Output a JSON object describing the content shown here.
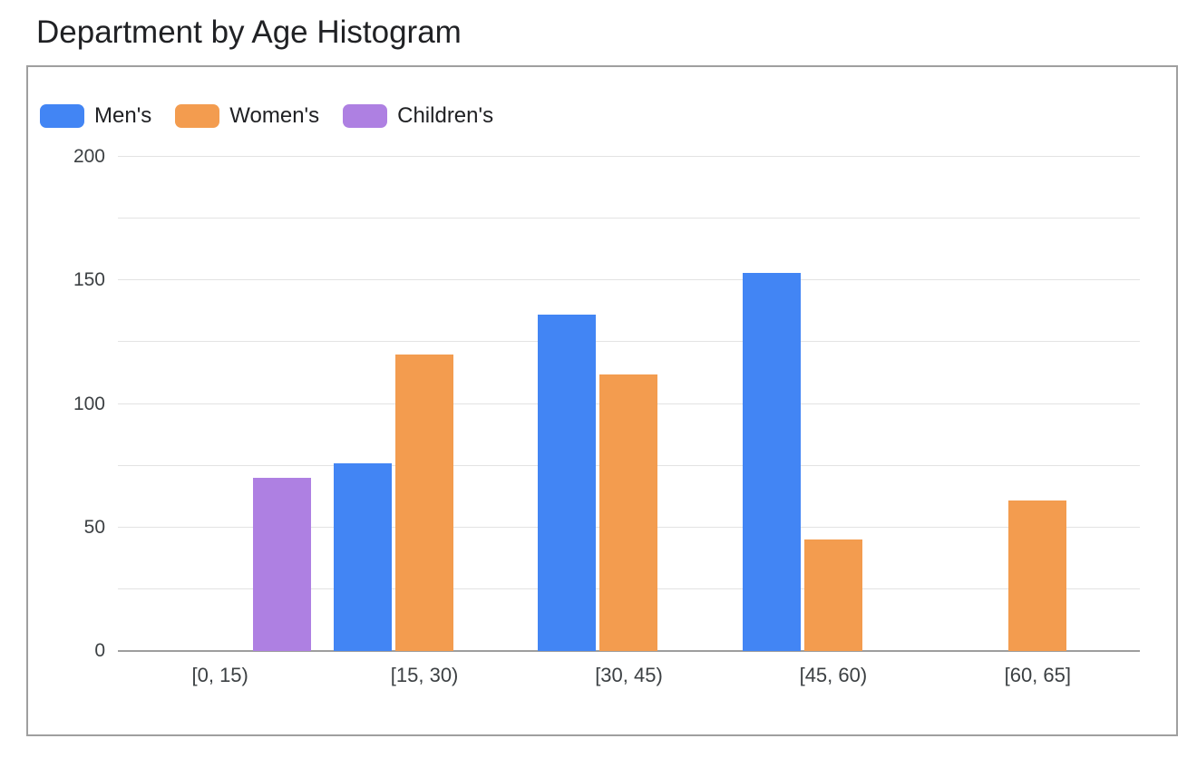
{
  "title": "Department by Age Histogram",
  "colors": {
    "mens_blue": "#4285F4",
    "womens_orange": "#F39C4F",
    "childrens_purple": "#AE80E2",
    "gridline": "#e3e3e3",
    "axis_line": "#9e9e9e",
    "card_border": "#9f9f9f",
    "title_text": "#202124",
    "axis_text": "#3c4043"
  },
  "legend": [
    {
      "label": "Men's",
      "color": "#4285F4"
    },
    {
      "label": "Women's",
      "color": "#F39C4F"
    },
    {
      "label": "Children's",
      "color": "#AE80E2"
    }
  ],
  "chart_data": {
    "type": "bar",
    "title": "Department by Age Histogram",
    "categories": [
      "[0, 15)",
      "[15, 30)",
      "[30, 45)",
      "[45, 60)",
      "[60, 65]"
    ],
    "series": [
      {
        "name": "Men's",
        "color": "#4285F4",
        "values": [
          null,
          76,
          136,
          153,
          null
        ]
      },
      {
        "name": "Women's",
        "color": "#F39C4F",
        "values": [
          null,
          120,
          112,
          45,
          61
        ]
      },
      {
        "name": "Children's",
        "color": "#AE80E2",
        "values": [
          70,
          null,
          null,
          null,
          null
        ]
      }
    ],
    "xlabel": "",
    "ylabel": "",
    "ylim": [
      0,
      200
    ],
    "y_ticks": [
      "0",
      "50",
      "100",
      "150",
      "200"
    ],
    "y_tick_step": 50,
    "minor_grid_step": 25,
    "grid": true,
    "legend_position": "top-left"
  }
}
